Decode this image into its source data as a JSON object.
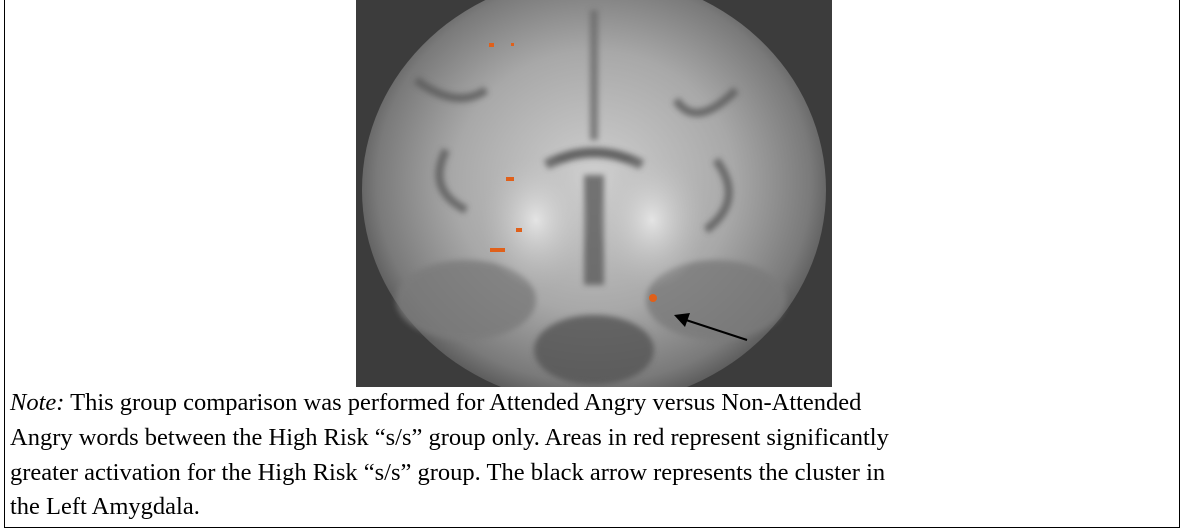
{
  "figure": {
    "note": {
      "label": "Note:",
      "lines": [
        " This group comparison was performed for Attended Angry versus Non-Attended",
        "Angry words between the High Risk “s/s” group only. Areas in red represent significantly",
        "greater activation for the High Risk “s/s” group. The black arrow represents the cluster in",
        "the Left Amygdala."
      ]
    }
  }
}
